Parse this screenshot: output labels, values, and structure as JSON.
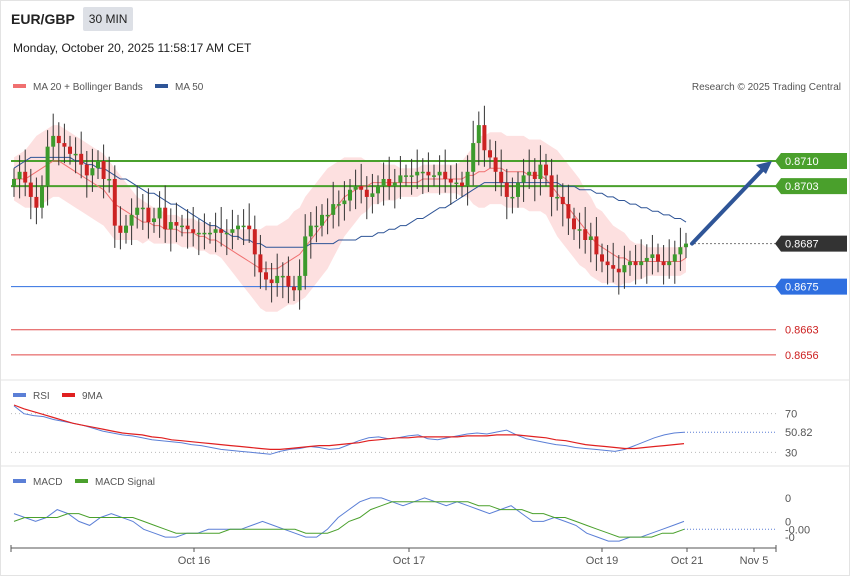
{
  "header": {
    "pair": "EUR/GBP",
    "timeframe": "30 MIN",
    "datetime": "Monday, October 20, 2025 11:58:17 AM CET"
  },
  "legend_main": [
    {
      "label": "MA 20 + Bollinger Bands",
      "color": "#f07070"
    },
    {
      "label": "MA 50",
      "color": "#2f5597"
    }
  ],
  "credit": "Research © 2025 Trading Central",
  "legend_rsi": [
    {
      "label": "RSI",
      "color": "#5b7fd6"
    },
    {
      "label": "9MA",
      "color": "#e02020"
    }
  ],
  "legend_macd": [
    {
      "label": "MACD",
      "color": "#5b7fd6"
    },
    {
      "label": "MACD Signal",
      "color": "#4aa02c"
    }
  ],
  "colors": {
    "bull": "#3c9a2c",
    "bear": "#cc2222",
    "band_fill": "#fde0e0",
    "resistance": "#4aa02c",
    "support": "#2f6fe0",
    "target": "#e04848",
    "current": "#333333",
    "arrow": "#2f5597"
  },
  "chart_data": {
    "type": "candlestick",
    "price_range": [
      0.8649,
      0.8727
    ],
    "levels": [
      {
        "label": "0.8710",
        "value": 0.871,
        "kind": "resistance"
      },
      {
        "label": "0.8703",
        "value": 0.8703,
        "kind": "resistance"
      },
      {
        "label": "0.8687",
        "value": 0.8687,
        "kind": "current"
      },
      {
        "label": "0.8675",
        "value": 0.8675,
        "kind": "support"
      },
      {
        "label": "0.8663",
        "value": 0.8663,
        "kind": "target"
      },
      {
        "label": "0.8656",
        "value": 0.8656,
        "kind": "target"
      }
    ],
    "arrow": {
      "from": 0.8687,
      "to": 0.871
    },
    "closes": [
      0.8705,
      0.8707,
      0.8704,
      0.87,
      0.8697,
      0.8703,
      0.8714,
      0.8717,
      0.8715,
      0.8714,
      0.8712,
      0.8712,
      0.8709,
      0.8706,
      0.8708,
      0.871,
      0.8705,
      0.8705,
      0.8692,
      0.869,
      0.8692,
      0.8695,
      0.8697,
      0.8697,
      0.8693,
      0.8694,
      0.8697,
      0.8691,
      0.8693,
      0.8692,
      0.8692,
      0.8691,
      0.869,
      0.869,
      0.869,
      0.869,
      0.8691,
      0.869,
      0.869,
      0.8691,
      0.8692,
      0.8692,
      0.8691,
      0.8684,
      0.8679,
      0.8677,
      0.8676,
      0.8678,
      0.8678,
      0.8675,
      0.8674,
      0.8678,
      0.8689,
      0.8692,
      0.8692,
      0.8695,
      0.8695,
      0.8698,
      0.8698,
      0.8699,
      0.8702,
      0.8703,
      0.8702,
      0.87,
      0.8701,
      0.8703,
      0.8705,
      0.8703,
      0.8704,
      0.8706,
      0.8706,
      0.8706,
      0.8707,
      0.8707,
      0.8706,
      0.8706,
      0.8707,
      0.8705,
      0.8704,
      0.8704,
      0.8703,
      0.8707,
      0.8715,
      0.872,
      0.8713,
      0.8711,
      0.8707,
      0.8704,
      0.87,
      0.87,
      0.8704,
      0.8706,
      0.8707,
      0.8705,
      0.8709,
      0.8706,
      0.87,
      0.87,
      0.8698,
      0.8694,
      0.8691,
      0.8691,
      0.8688,
      0.8689,
      0.8684,
      0.8682,
      0.8681,
      0.868,
      0.8679,
      0.8681,
      0.8682,
      0.8681,
      0.8682,
      0.8683,
      0.8684,
      0.8682,
      0.8681,
      0.8682,
      0.8684,
      0.8686,
      0.8687
    ],
    "ma20": [
      0.8705,
      0.8705,
      0.8705,
      0.8706,
      0.8707,
      0.8708,
      0.8709,
      0.871,
      0.871,
      0.8709,
      0.8708,
      0.8707,
      0.8706,
      0.8705,
      0.8704,
      0.8703,
      0.8702,
      0.87,
      0.8698,
      0.8697,
      0.8696,
      0.8695,
      0.8694,
      0.8693,
      0.8693,
      0.8692,
      0.8692,
      0.8691,
      0.8691,
      0.8691,
      0.869,
      0.869,
      0.869,
      0.8689,
      0.8689,
      0.8688,
      0.8688,
      0.8687,
      0.8686,
      0.8685,
      0.8684,
      0.8683,
      0.8682,
      0.8681,
      0.868,
      0.868,
      0.868,
      0.868,
      0.8681,
      0.8682,
      0.8683,
      0.8684,
      0.8686,
      0.8688,
      0.869,
      0.8692,
      0.8694,
      0.8696,
      0.8698,
      0.87,
      0.8701,
      0.8702,
      0.8703,
      0.8703,
      0.8704,
      0.8704,
      0.8704,
      0.8704,
      0.8704,
      0.8704,
      0.8704,
      0.8704,
      0.8704,
      0.8705,
      0.8705,
      0.8705,
      0.8705,
      0.8705,
      0.8705,
      0.8705,
      0.8705,
      0.8706,
      0.8706,
      0.8707,
      0.8707,
      0.8708,
      0.8708,
      0.8708,
      0.8707,
      0.8707,
      0.8707,
      0.8707,
      0.8706,
      0.8706,
      0.8706,
      0.8705,
      0.8703,
      0.8701,
      0.8699,
      0.8697,
      0.8695,
      0.8693,
      0.8691,
      0.8689,
      0.8687,
      0.8686,
      0.8685,
      0.8684,
      0.8683,
      0.8683,
      0.8682,
      0.8682,
      0.8682,
      0.8682,
      0.8682,
      0.8682,
      0.8682,
      0.8682,
      0.8682,
      0.8682,
      0.8683
    ],
    "band_width": [
      0.0006,
      0.0007,
      0.0008,
      0.0009,
      0.001,
      0.001,
      0.001,
      0.001,
      0.001,
      0.001,
      0.001,
      0.001,
      0.001,
      0.001,
      0.001,
      0.001,
      0.001,
      0.001,
      0.001,
      0.0009,
      0.0008,
      0.0007,
      0.0006,
      0.0006,
      0.0005,
      0.0005,
      0.0005,
      0.0004,
      0.0004,
      0.0004,
      0.0004,
      0.0004,
      0.0004,
      0.0004,
      0.0004,
      0.0004,
      0.0004,
      0.0004,
      0.0005,
      0.0006,
      0.0007,
      0.0008,
      0.0009,
      0.001,
      0.0011,
      0.0012,
      0.0012,
      0.0012,
      0.0012,
      0.0012,
      0.0013,
      0.0013,
      0.0014,
      0.0014,
      0.0014,
      0.0014,
      0.0014,
      0.0013,
      0.0012,
      0.0011,
      0.001,
      0.0009,
      0.0008,
      0.0007,
      0.0006,
      0.0006,
      0.0005,
      0.0005,
      0.0005,
      0.0004,
      0.0004,
      0.0004,
      0.0004,
      0.0004,
      0.0004,
      0.0004,
      0.0004,
      0.0004,
      0.0004,
      0.0004,
      0.0005,
      0.0006,
      0.0008,
      0.001,
      0.001,
      0.001,
      0.001,
      0.001,
      0.001,
      0.001,
      0.001,
      0.001,
      0.001,
      0.001,
      0.001,
      0.001,
      0.0011,
      0.0012,
      0.0012,
      0.0012,
      0.0012,
      0.0012,
      0.0011,
      0.0011,
      0.001,
      0.001,
      0.0009,
      0.0008,
      0.0008,
      0.0007,
      0.0006,
      0.0005,
      0.0005,
      0.0004,
      0.0004,
      0.0004,
      0.0004,
      0.0004,
      0.0004,
      0.0004,
      0.0004
    ],
    "ma50": [
      0.8708,
      0.8709,
      0.871,
      0.8711,
      0.8711,
      0.8711,
      0.8711,
      0.8711,
      0.8711,
      0.8711,
      0.8711,
      0.871,
      0.871,
      0.8709,
      0.8709,
      0.8708,
      0.8708,
      0.8707,
      0.8706,
      0.8705,
      0.8705,
      0.8704,
      0.8703,
      0.8702,
      0.8701,
      0.8701,
      0.87,
      0.8699,
      0.8698,
      0.8698,
      0.8697,
      0.8696,
      0.8695,
      0.8694,
      0.8693,
      0.8692,
      0.8692,
      0.8691,
      0.869,
      0.8689,
      0.8689,
      0.8688,
      0.8688,
      0.8687,
      0.8687,
      0.8686,
      0.8686,
      0.8686,
      0.8686,
      0.8686,
      0.8686,
      0.8686,
      0.8686,
      0.8687,
      0.8687,
      0.8687,
      0.8687,
      0.8687,
      0.8688,
      0.8688,
      0.8688,
      0.8688,
      0.8689,
      0.8689,
      0.8689,
      0.869,
      0.869,
      0.8691,
      0.8691,
      0.8692,
      0.8692,
      0.8693,
      0.8694,
      0.8694,
      0.8695,
      0.8696,
      0.8697,
      0.8697,
      0.8698,
      0.8699,
      0.87,
      0.8701,
      0.8702,
      0.8703,
      0.8704,
      0.8704,
      0.8704,
      0.8704,
      0.8704,
      0.8704,
      0.8704,
      0.8704,
      0.8704,
      0.8704,
      0.8704,
      0.8704,
      0.8704,
      0.8704,
      0.8703,
      0.8703,
      0.8703,
      0.8702,
      0.8702,
      0.8702,
      0.8701,
      0.8701,
      0.87,
      0.87,
      0.8699,
      0.8699,
      0.8698,
      0.8698,
      0.8697,
      0.8697,
      0.8696,
      0.8696,
      0.8695,
      0.8695,
      0.8694,
      0.8694,
      0.8693
    ],
    "rsi": {
      "ticks": [
        "70",
        "50.82",
        "30"
      ],
      "tick_values": [
        70,
        50.82,
        30
      ],
      "range": [
        20,
        80
      ],
      "values": [
        78,
        70,
        68,
        67,
        64,
        62,
        60,
        58,
        55,
        52,
        50,
        48,
        47,
        45,
        43,
        42,
        41,
        40,
        38,
        37,
        35,
        33,
        32,
        31,
        30,
        29,
        28,
        31,
        33,
        34,
        36,
        35,
        33,
        34,
        38,
        42,
        45,
        46,
        44,
        45,
        47,
        48,
        44,
        43,
        45,
        47,
        49,
        50,
        49,
        51,
        53,
        48,
        44,
        42,
        40,
        38,
        37,
        35,
        34,
        33,
        32,
        31,
        33,
        37,
        41,
        45,
        48,
        50,
        50.82
      ],
      "ma9": [
        79,
        75,
        72,
        69,
        66,
        63,
        60,
        58,
        56,
        54,
        52,
        50,
        49,
        48,
        46,
        45,
        43,
        42,
        41,
        40,
        39,
        38,
        37,
        36,
        35,
        34,
        33,
        33,
        34,
        35,
        36,
        37,
        37,
        38,
        39,
        40,
        42,
        43,
        44,
        45,
        45,
        46,
        46,
        46,
        46,
        46,
        47,
        47,
        47,
        48,
        48,
        48,
        47,
        46,
        45,
        43,
        42,
        40,
        38,
        37,
        36,
        35,
        34,
        34,
        35,
        36,
        37,
        38,
        39
      ]
    },
    "macd": {
      "ticks": [
        "0",
        "0",
        "-0.00",
        "-0"
      ],
      "tick_values": [
        0.0006,
        0.0,
        -0.0002,
        -0.0004
      ],
      "current_label": "-0.00",
      "range": [
        -0.0006,
        0.0008
      ],
      "values": [
        0.0002,
        0.0001,
        0.0,
        0.0001,
        0.0003,
        0.0002,
        0.0,
        -0.0001,
        0.0001,
        0.0002,
        0.0001,
        0.0,
        -0.0002,
        -0.0003,
        -0.0004,
        -0.0004,
        -0.0003,
        -0.0003,
        -0.0002,
        -0.0002,
        -0.0002,
        -0.0002,
        -0.0001,
        0.0,
        -0.0001,
        -0.0002,
        -0.0003,
        -0.0004,
        -0.0004,
        -0.0002,
        0.0001,
        0.0003,
        0.0005,
        0.0006,
        0.0006,
        0.0005,
        0.0004,
        0.0005,
        0.0006,
        0.0005,
        0.0004,
        0.0005,
        0.0004,
        0.0003,
        0.0002,
        0.0003,
        0.0004,
        0.0002,
        0.0,
        0.0,
        0.0001,
        0.0,
        -0.0001,
        -0.0003,
        -0.0004,
        -0.0005,
        -0.0005,
        -0.0004,
        -0.0004,
        -0.0003,
        -0.0002,
        -0.0001,
        0.0
      ],
      "signal": [
        0.0,
        0.0001,
        0.0001,
        0.0001,
        0.0001,
        0.0002,
        0.0002,
        0.0001,
        0.0001,
        0.0001,
        0.0001,
        0.0001,
        0.0,
        -0.0001,
        -0.0002,
        -0.0003,
        -0.0003,
        -0.0003,
        -0.0003,
        -0.0003,
        -0.0002,
        -0.0002,
        -0.0002,
        -0.0002,
        -0.0002,
        -0.0002,
        -0.0002,
        -0.0003,
        -0.0003,
        -0.0003,
        -0.0002,
        0.0,
        0.0001,
        0.0003,
        0.0004,
        0.0005,
        0.0005,
        0.0005,
        0.0005,
        0.0005,
        0.0005,
        0.0005,
        0.0005,
        0.0004,
        0.0004,
        0.0003,
        0.0003,
        0.0003,
        0.0002,
        0.0002,
        0.0001,
        0.0001,
        0.0,
        -0.0001,
        -0.0002,
        -0.0003,
        -0.0004,
        -0.0004,
        -0.0004,
        -0.0004,
        -0.0003,
        -0.0003,
        -0.0002
      ]
    },
    "x_ticks": [
      {
        "label": "Oct 16",
        "bar": 25
      },
      {
        "label": "Oct 17",
        "bar": 56
      },
      {
        "label": "Oct 19",
        "bar": 84
      },
      {
        "label": "Oct 21",
        "bar": 96
      },
      {
        "label": "Nov 5",
        "bar": 106
      }
    ]
  }
}
